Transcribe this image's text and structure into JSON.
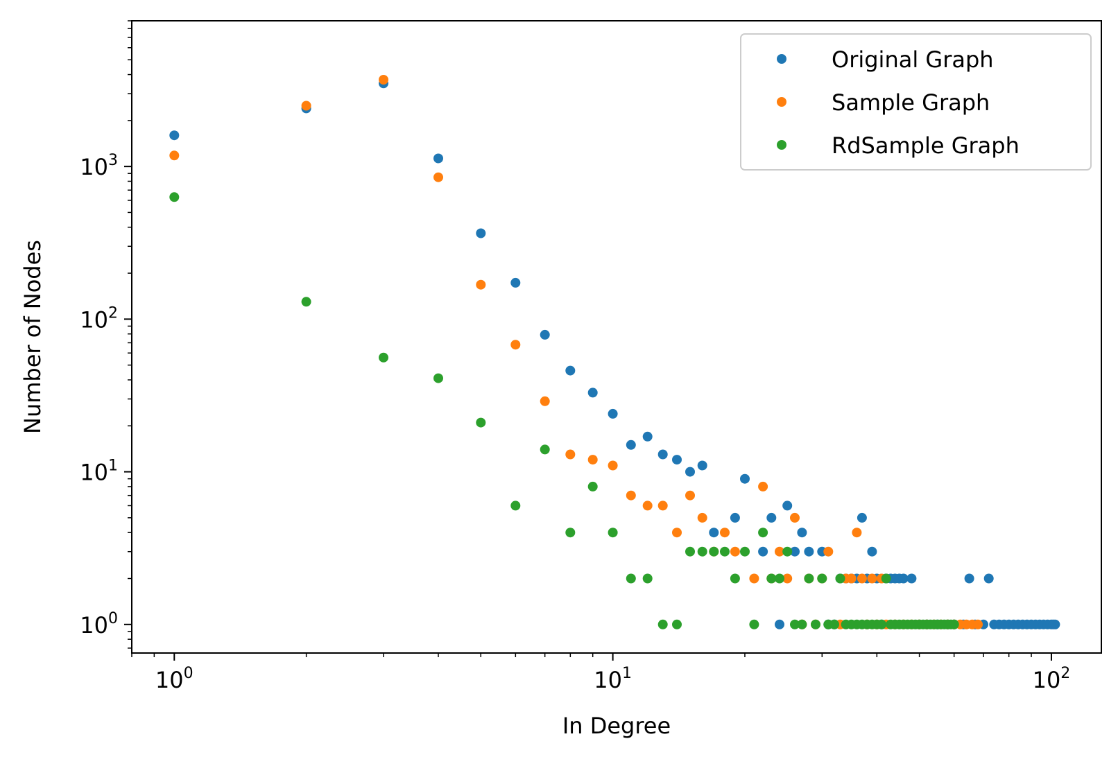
{
  "chart_data": {
    "type": "scatter",
    "xscale": "log",
    "yscale": "log",
    "xlabel": "In Degree",
    "ylabel": "Number of Nodes",
    "xlim": [
      0.8,
      130
    ],
    "ylim": [
      0.65,
      9000
    ],
    "x_ticks": [
      {
        "base": "10",
        "exp": "0"
      },
      {
        "base": "10",
        "exp": "1"
      },
      {
        "base": "10",
        "exp": "2"
      }
    ],
    "y_ticks": [
      {
        "base": "10",
        "exp": "0"
      },
      {
        "base": "10",
        "exp": "1"
      },
      {
        "base": "10",
        "exp": "2"
      },
      {
        "base": "10",
        "exp": "3"
      }
    ],
    "legend_position": "top-right",
    "series": [
      {
        "name": "Original Graph",
        "color": "#1f77b4",
        "points": [
          [
            1,
            1600
          ],
          [
            2,
            2400
          ],
          [
            3,
            3500
          ],
          [
            4,
            1130
          ],
          [
            5,
            365
          ],
          [
            6,
            173
          ],
          [
            7,
            79
          ],
          [
            8,
            46
          ],
          [
            9,
            33
          ],
          [
            10,
            24
          ],
          [
            11,
            15
          ],
          [
            12,
            17
          ],
          [
            13,
            13
          ],
          [
            14,
            12
          ],
          [
            15,
            10
          ],
          [
            16,
            11
          ],
          [
            17,
            4
          ],
          [
            19,
            5
          ],
          [
            20,
            9
          ],
          [
            22,
            3
          ],
          [
            23,
            5
          ],
          [
            24,
            1
          ],
          [
            25,
            6
          ],
          [
            26,
            3
          ],
          [
            27,
            4
          ],
          [
            28,
            3
          ],
          [
            30,
            3
          ],
          [
            31,
            1
          ],
          [
            32,
            1
          ],
          [
            33,
            2
          ],
          [
            34,
            2
          ],
          [
            35,
            2
          ],
          [
            36,
            2
          ],
          [
            37,
            5
          ],
          [
            38,
            2
          ],
          [
            39,
            3
          ],
          [
            40,
            2
          ],
          [
            41,
            1
          ],
          [
            42,
            2
          ],
          [
            43,
            2
          ],
          [
            44,
            2
          ],
          [
            45,
            2
          ],
          [
            46,
            2
          ],
          [
            48,
            2
          ],
          [
            50,
            1
          ],
          [
            52,
            1
          ],
          [
            55,
            1
          ],
          [
            58,
            1
          ],
          [
            60,
            1
          ],
          [
            63,
            1
          ],
          [
            65,
            2
          ],
          [
            67,
            1
          ],
          [
            70,
            1
          ],
          [
            72,
            2
          ],
          [
            74,
            1
          ],
          [
            76,
            1
          ],
          [
            78,
            1
          ],
          [
            80,
            1
          ],
          [
            82,
            1
          ],
          [
            84,
            1
          ],
          [
            86,
            1
          ],
          [
            88,
            1
          ],
          [
            90,
            1
          ],
          [
            92,
            1
          ],
          [
            94,
            1
          ],
          [
            96,
            1
          ],
          [
            98,
            1
          ],
          [
            100,
            1
          ],
          [
            101,
            1
          ],
          [
            102,
            1
          ]
        ]
      },
      {
        "name": "Sample Graph",
        "color": "#ff7f0e",
        "points": [
          [
            1,
            1180
          ],
          [
            2,
            2500
          ],
          [
            3,
            3700
          ],
          [
            4,
            850
          ],
          [
            5,
            168
          ],
          [
            6,
            68
          ],
          [
            7,
            29
          ],
          [
            8,
            13
          ],
          [
            9,
            12
          ],
          [
            10,
            11
          ],
          [
            11,
            7
          ],
          [
            12,
            6
          ],
          [
            13,
            6
          ],
          [
            14,
            4
          ],
          [
            15,
            7
          ],
          [
            16,
            5
          ],
          [
            17,
            3
          ],
          [
            18,
            4
          ],
          [
            19,
            3
          ],
          [
            21,
            2
          ],
          [
            22,
            8
          ],
          [
            23,
            2
          ],
          [
            24,
            3
          ],
          [
            25,
            2
          ],
          [
            26,
            5
          ],
          [
            27,
            1
          ],
          [
            28,
            2
          ],
          [
            29,
            1
          ],
          [
            30,
            2
          ],
          [
            31,
            3
          ],
          [
            33,
            1
          ],
          [
            34,
            2
          ],
          [
            35,
            2
          ],
          [
            36,
            4
          ],
          [
            37,
            2
          ],
          [
            38,
            1
          ],
          [
            39,
            2
          ],
          [
            40,
            1
          ],
          [
            41,
            2
          ],
          [
            42,
            1
          ],
          [
            44,
            1
          ],
          [
            46,
            1
          ],
          [
            48,
            1
          ],
          [
            50,
            1
          ],
          [
            52,
            1
          ],
          [
            54,
            1
          ],
          [
            56,
            1
          ],
          [
            58,
            1
          ],
          [
            60,
            1
          ],
          [
            62,
            1
          ],
          [
            64,
            1
          ],
          [
            66,
            1
          ],
          [
            68,
            1
          ]
        ]
      },
      {
        "name": "RdSample Graph",
        "color": "#2ca02c",
        "points": [
          [
            1,
            630
          ],
          [
            2,
            130
          ],
          [
            3,
            56
          ],
          [
            4,
            41
          ],
          [
            5,
            21
          ],
          [
            6,
            6
          ],
          [
            7,
            14
          ],
          [
            8,
            4
          ],
          [
            9,
            8
          ],
          [
            10,
            4
          ],
          [
            11,
            2
          ],
          [
            12,
            2
          ],
          [
            13,
            1
          ],
          [
            14,
            1
          ],
          [
            15,
            3
          ],
          [
            16,
            3
          ],
          [
            17,
            3
          ],
          [
            18,
            3
          ],
          [
            19,
            2
          ],
          [
            20,
            3
          ],
          [
            21,
            1
          ],
          [
            22,
            4
          ],
          [
            23,
            2
          ],
          [
            24,
            2
          ],
          [
            25,
            3
          ],
          [
            26,
            1
          ],
          [
            27,
            1
          ],
          [
            28,
            2
          ],
          [
            29,
            1
          ],
          [
            30,
            2
          ],
          [
            31,
            1
          ],
          [
            32,
            1
          ],
          [
            33,
            2
          ],
          [
            34,
            1
          ],
          [
            35,
            1
          ],
          [
            36,
            1
          ],
          [
            37,
            1
          ],
          [
            38,
            1
          ],
          [
            39,
            1
          ],
          [
            40,
            1
          ],
          [
            41,
            1
          ],
          [
            42,
            2
          ],
          [
            43,
            1
          ],
          [
            44,
            1
          ],
          [
            45,
            1
          ],
          [
            46,
            1
          ],
          [
            47,
            1
          ],
          [
            48,
            1
          ],
          [
            49,
            1
          ],
          [
            50,
            1
          ],
          [
            51,
            1
          ],
          [
            52,
            1
          ],
          [
            53,
            1
          ],
          [
            54,
            1
          ],
          [
            55,
            1
          ],
          [
            56,
            1
          ],
          [
            57,
            1
          ],
          [
            58,
            1
          ],
          [
            59,
            1
          ],
          [
            60,
            1
          ]
        ]
      }
    ]
  }
}
